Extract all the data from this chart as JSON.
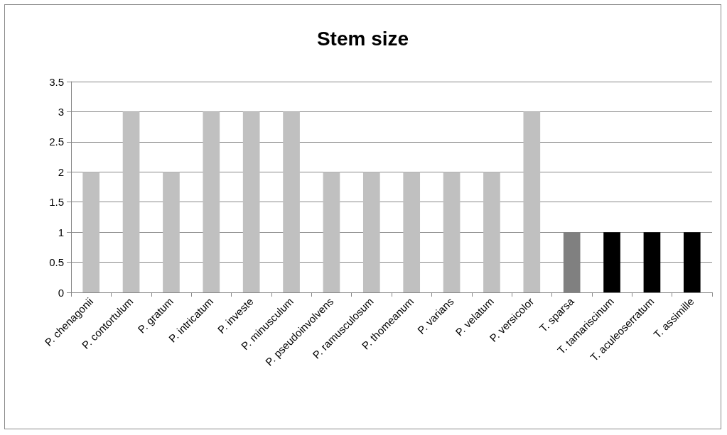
{
  "chart_data": {
    "type": "bar",
    "title": "Stem size",
    "categories": [
      "P. chenagonii",
      "P. contortulum",
      "P. gratum",
      "P. intricatum",
      "P. investe",
      "P. minusculum",
      "P. pseudoinvolvens",
      "P. ramusculosum",
      "P. thomeanum",
      "P. varians",
      "P. velatum",
      "P. versicolor",
      "T. sparsa",
      "T. tamariscinum",
      "T. aculeoserratum",
      "T. assimille"
    ],
    "values": [
      2,
      3,
      2,
      3,
      3,
      3,
      2,
      2,
      2,
      2,
      2,
      3,
      1,
      1,
      1,
      1
    ],
    "colors": [
      "#c0c0c0",
      "#c0c0c0",
      "#c0c0c0",
      "#c0c0c0",
      "#c0c0c0",
      "#c0c0c0",
      "#c0c0c0",
      "#c0c0c0",
      "#c0c0c0",
      "#c0c0c0",
      "#c0c0c0",
      "#c0c0c0",
      "#808080",
      "#000000",
      "#000000",
      "#000000"
    ],
    "ylim": [
      0,
      3.5
    ],
    "yticks": [
      0,
      0.5,
      1,
      1.5,
      2,
      2.5,
      3,
      3.5
    ],
    "grid": "y"
  }
}
